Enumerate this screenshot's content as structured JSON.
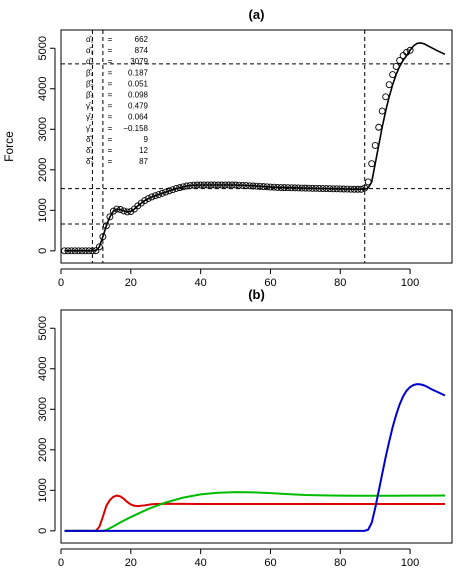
{
  "chart_data": [
    {
      "type": "scatter",
      "title": "(a)",
      "ylabel": "Force",
      "xlabel": "",
      "xlim": [
        0,
        112
      ],
      "ylim": [
        -300,
        5450
      ],
      "xticks": [
        0,
        20,
        40,
        60,
        80,
        100
      ],
      "yticks": [
        0,
        1000,
        2000,
        3000,
        4000,
        5000
      ],
      "grid": false,
      "points": {
        "x": [
          1,
          2,
          3,
          4,
          5,
          6,
          7,
          8,
          9,
          10,
          11,
          12,
          13,
          14,
          15,
          16,
          17,
          18,
          19,
          20,
          21,
          22,
          23,
          24,
          25,
          26,
          27,
          28,
          29,
          30,
          31,
          32,
          33,
          34,
          35,
          36,
          37,
          38,
          39,
          40,
          41,
          42,
          43,
          44,
          45,
          46,
          47,
          48,
          49,
          50,
          51,
          52,
          53,
          54,
          55,
          56,
          57,
          58,
          59,
          60,
          61,
          62,
          63,
          64,
          65,
          66,
          67,
          68,
          69,
          70,
          71,
          72,
          73,
          74,
          75,
          76,
          77,
          78,
          79,
          80,
          81,
          82,
          83,
          84,
          85,
          86,
          87,
          88,
          89,
          90,
          91,
          92,
          93,
          94,
          95,
          96,
          97,
          98,
          99,
          100
        ],
        "y": [
          0,
          0,
          0,
          0,
          0,
          0,
          0,
          0,
          0,
          5,
          100,
          350,
          620,
          840,
          980,
          1030,
          1020,
          985,
          960,
          970,
          1030,
          1110,
          1180,
          1240,
          1290,
          1330,
          1360,
          1390,
          1420,
          1450,
          1480,
          1510,
          1540,
          1560,
          1580,
          1600,
          1610,
          1620,
          1625,
          1625,
          1625,
          1625,
          1625,
          1625,
          1625,
          1625,
          1625,
          1625,
          1625,
          1625,
          1620,
          1615,
          1610,
          1605,
          1600,
          1595,
          1590,
          1585,
          1580,
          1575,
          1570,
          1565,
          1562,
          1560,
          1558,
          1556,
          1554,
          1552,
          1550,
          1548,
          1546,
          1544,
          1542,
          1540,
          1538,
          1536,
          1534,
          1532,
          1530,
          1528,
          1526,
          1524,
          1522,
          1520,
          1520,
          1520,
          1550,
          1700,
          2150,
          2600,
          3050,
          3450,
          3800,
          4100,
          4350,
          4550,
          4700,
          4820,
          4900,
          4950
        ]
      },
      "fitted_curve": {
        "x": [
          1,
          9,
          10,
          11,
          12,
          13,
          14,
          15,
          16,
          17,
          18,
          19,
          20,
          21,
          22,
          24,
          26,
          28,
          30,
          32,
          34,
          36,
          38,
          40,
          45,
          50,
          55,
          60,
          65,
          70,
          75,
          80,
          85,
          87,
          88,
          89,
          90,
          91,
          92,
          93,
          94,
          95,
          96,
          97,
          98,
          99,
          100,
          101,
          102,
          103,
          104,
          106,
          108,
          110
        ],
        "y": [
          0,
          0,
          5,
          100,
          350,
          620,
          840,
          980,
          1030,
          1020,
          985,
          960,
          970,
          1030,
          1110,
          1240,
          1330,
          1390,
          1450,
          1510,
          1560,
          1600,
          1620,
          1625,
          1625,
          1625,
          1605,
          1575,
          1558,
          1548,
          1538,
          1528,
          1520,
          1520,
          1550,
          1700,
          2150,
          2600,
          3050,
          3450,
          3800,
          4100,
          4350,
          4550,
          4700,
          4820,
          4950,
          5060,
          5120,
          5130,
          5110,
          5020,
          4930,
          4850
        ]
      },
      "hlines": [
        662,
        1536,
        4615
      ],
      "vlines": [
        9,
        12,
        87
      ],
      "parameters": [
        {
          "label": "α̂₁",
          "value": "662"
        },
        {
          "label": "α̂₂",
          "value": "874"
        },
        {
          "label": "α̂₃",
          "value": "3079"
        },
        {
          "label": "β̂₁",
          "value": "0.187"
        },
        {
          "label": "β̂₂",
          "value": "0.051"
        },
        {
          "label": "β̂₃",
          "value": "0.098"
        },
        {
          "label": "γ̂₁",
          "value": "0.479"
        },
        {
          "label": "γ̂₂",
          "value": "0.064"
        },
        {
          "label": "γ̂₃",
          "value": "−0.158"
        },
        {
          "label": "δ̂₁",
          "value": "9"
        },
        {
          "label": "δ̂₂",
          "value": "12"
        },
        {
          "label": "δ̂₃",
          "value": "87"
        }
      ],
      "param_eq": "="
    },
    {
      "type": "line",
      "title": "(b)",
      "xlabel": "",
      "ylabel": "",
      "xlim": [
        0,
        112
      ],
      "ylim": [
        -300,
        5450
      ],
      "xticks": [
        0,
        20,
        40,
        60,
        80,
        100
      ],
      "yticks": [
        0,
        1000,
        2000,
        3000,
        4000,
        5000
      ],
      "grid": false,
      "series": [
        {
          "color": "#dd0000",
          "x": [
            1,
            9,
            10,
            11,
            12,
            13,
            14,
            15,
            16,
            17,
            18,
            19,
            20,
            21,
            22,
            24,
            26,
            28,
            30,
            35,
            40,
            50,
            60,
            70,
            80,
            90,
            100,
            110
          ],
          "y": [
            0,
            0,
            5,
            100,
            350,
            620,
            760,
            840,
            870,
            850,
            790,
            710,
            650,
            620,
            610,
            630,
            655,
            665,
            668,
            665,
            662,
            662,
            662,
            662,
            662,
            662,
            662,
            662
          ]
        },
        {
          "color": "#00bb00",
          "x": [
            1,
            12,
            13,
            15,
            17,
            20,
            25,
            30,
            35,
            40,
            45,
            50,
            55,
            60,
            65,
            70,
            75,
            80,
            85,
            90,
            95,
            100,
            105,
            110
          ],
          "y": [
            0,
            0,
            20,
            110,
            210,
            340,
            540,
            700,
            820,
            900,
            940,
            955,
            950,
            930,
            905,
            885,
            875,
            868,
            866,
            865,
            866,
            868,
            870,
            872
          ]
        },
        {
          "color": "#0000cc",
          "x": [
            1,
            87,
            88,
            89,
            90,
            91,
            92,
            93,
            94,
            95,
            96,
            97,
            98,
            99,
            100,
            101,
            102,
            103,
            104,
            105,
            106,
            108,
            110
          ],
          "y": [
            0,
            0,
            30,
            200,
            560,
            980,
            1400,
            1820,
            2200,
            2560,
            2860,
            3120,
            3320,
            3460,
            3550,
            3600,
            3620,
            3615,
            3590,
            3550,
            3500,
            3420,
            3340
          ]
        }
      ]
    }
  ]
}
